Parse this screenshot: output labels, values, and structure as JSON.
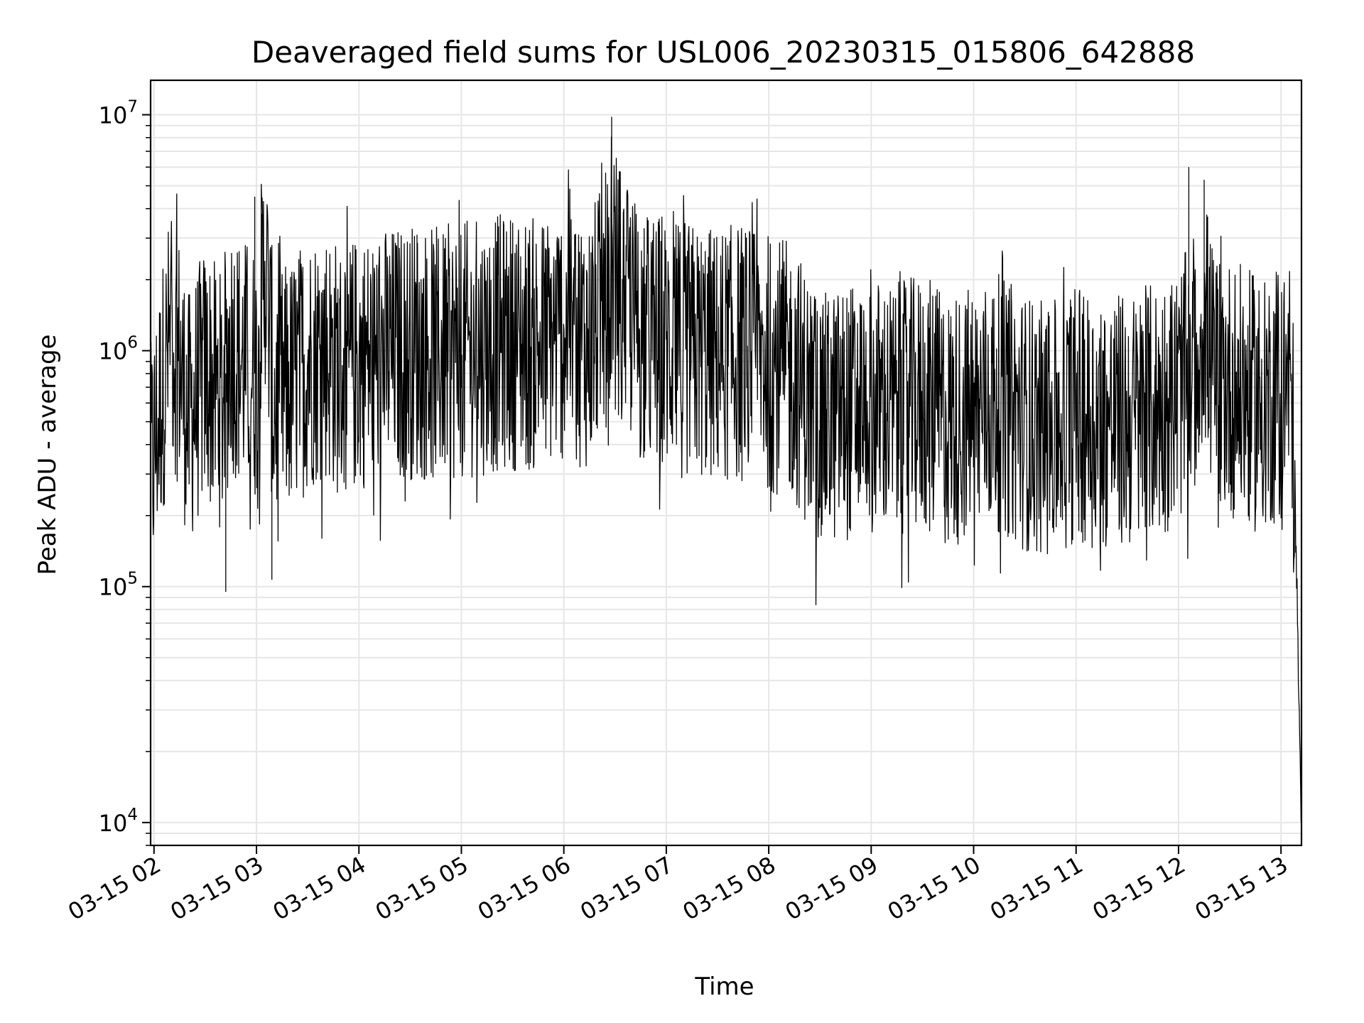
{
  "chart_data": {
    "type": "line",
    "title": "Deaveraged field sums for USL006_20230315_015806_642888",
    "xlabel": "Time",
    "ylabel": "Peak ADU - average",
    "yscale": "log",
    "ylim": [
      8000,
      14000000
    ],
    "xlim": [
      "2023-03-15 01:58",
      "2023-03-15 13:12"
    ],
    "x_ticks": [
      {
        "value": "2023-03-15 02:00",
        "label": "03-15 02"
      },
      {
        "value": "2023-03-15 03:00",
        "label": "03-15 03"
      },
      {
        "value": "2023-03-15 04:00",
        "label": "03-15 04"
      },
      {
        "value": "2023-03-15 05:00",
        "label": "03-15 05"
      },
      {
        "value": "2023-03-15 06:00",
        "label": "03-15 06"
      },
      {
        "value": "2023-03-15 07:00",
        "label": "03-15 07"
      },
      {
        "value": "2023-03-15 08:00",
        "label": "03-15 08"
      },
      {
        "value": "2023-03-15 09:00",
        "label": "03-15 09"
      },
      {
        "value": "2023-03-15 10:00",
        "label": "03-15 10"
      },
      {
        "value": "2023-03-15 11:00",
        "label": "03-15 11"
      },
      {
        "value": "2023-03-15 12:00",
        "label": "03-15 12"
      },
      {
        "value": "2023-03-15 13:00",
        "label": "03-15 13"
      }
    ],
    "y_ticks": [
      {
        "value": 10000,
        "base": "10",
        "exp": "4"
      },
      {
        "value": 100000,
        "base": "10",
        "exp": "5"
      },
      {
        "value": 1000000,
        "base": "10",
        "exp": "6"
      },
      {
        "value": 10000000,
        "base": "10",
        "exp": "7"
      }
    ],
    "grid": true,
    "line_color": "#000000",
    "grid_color": "#e6e6e6",
    "series": [
      {
        "x": [
          "2023-03-15 01:58",
          "2023-03-15 02:05",
          "2023-03-15 02:10",
          "2023-03-15 02:15",
          "2023-03-15 02:20",
          "2023-03-15 02:30",
          "2023-03-15 02:40",
          "2023-03-15 02:45",
          "2023-03-15 02:50",
          "2023-03-15 03:00",
          "2023-03-15 03:05",
          "2023-03-15 03:10",
          "2023-03-15 03:20",
          "2023-03-15 03:30",
          "2023-03-15 03:40",
          "2023-03-15 03:50",
          "2023-03-15 04:00",
          "2023-03-15 04:15",
          "2023-03-15 04:30",
          "2023-03-15 04:45",
          "2023-03-15 05:00",
          "2023-03-15 05:15",
          "2023-03-15 05:30",
          "2023-03-15 05:45",
          "2023-03-15 06:00",
          "2023-03-15 06:15",
          "2023-03-15 06:30",
          "2023-03-15 06:45",
          "2023-03-15 07:00",
          "2023-03-15 07:15",
          "2023-03-15 07:30",
          "2023-03-15 07:45",
          "2023-03-15 08:00",
          "2023-03-15 08:15",
          "2023-03-15 08:30",
          "2023-03-15 08:45",
          "2023-03-15 09:00",
          "2023-03-15 09:15",
          "2023-03-15 09:30",
          "2023-03-15 09:45",
          "2023-03-15 10:00",
          "2023-03-15 10:15",
          "2023-03-15 10:30",
          "2023-03-15 10:45",
          "2023-03-15 11:00",
          "2023-03-15 11:15",
          "2023-03-15 11:30",
          "2023-03-15 11:45",
          "2023-03-15 12:00",
          "2023-03-15 12:10",
          "2023-03-15 12:15",
          "2023-03-15 12:20",
          "2023-03-15 12:30",
          "2023-03-15 12:45",
          "2023-03-15 13:00",
          "2023-03-15 13:05",
          "2023-03-15 13:08",
          "2023-03-15 13:10",
          "2023-03-15 13:11",
          "2023-03-15 13:12"
        ],
        "y": [
          300000,
          700000,
          1200000,
          900000,
          500000,
          800000,
          600000,
          1100000,
          900000,
          800000,
          2500000,
          600000,
          700000,
          900000,
          1000000,
          800000,
          900000,
          950000,
          1000000,
          950000,
          1000000,
          1050000,
          1100000,
          1050000,
          1200000,
          1100000,
          2000000,
          1150000,
          1050000,
          1000000,
          950000,
          1000000,
          900000,
          800000,
          500000,
          550000,
          600000,
          550000,
          600000,
          500000,
          550000,
          600000,
          500000,
          450000,
          550000,
          500000,
          500000,
          550000,
          650000,
          900000,
          1500000,
          800000,
          700000,
          600000,
          650000,
          800000,
          300000,
          50000,
          20000,
          10000
        ]
      }
    ]
  }
}
